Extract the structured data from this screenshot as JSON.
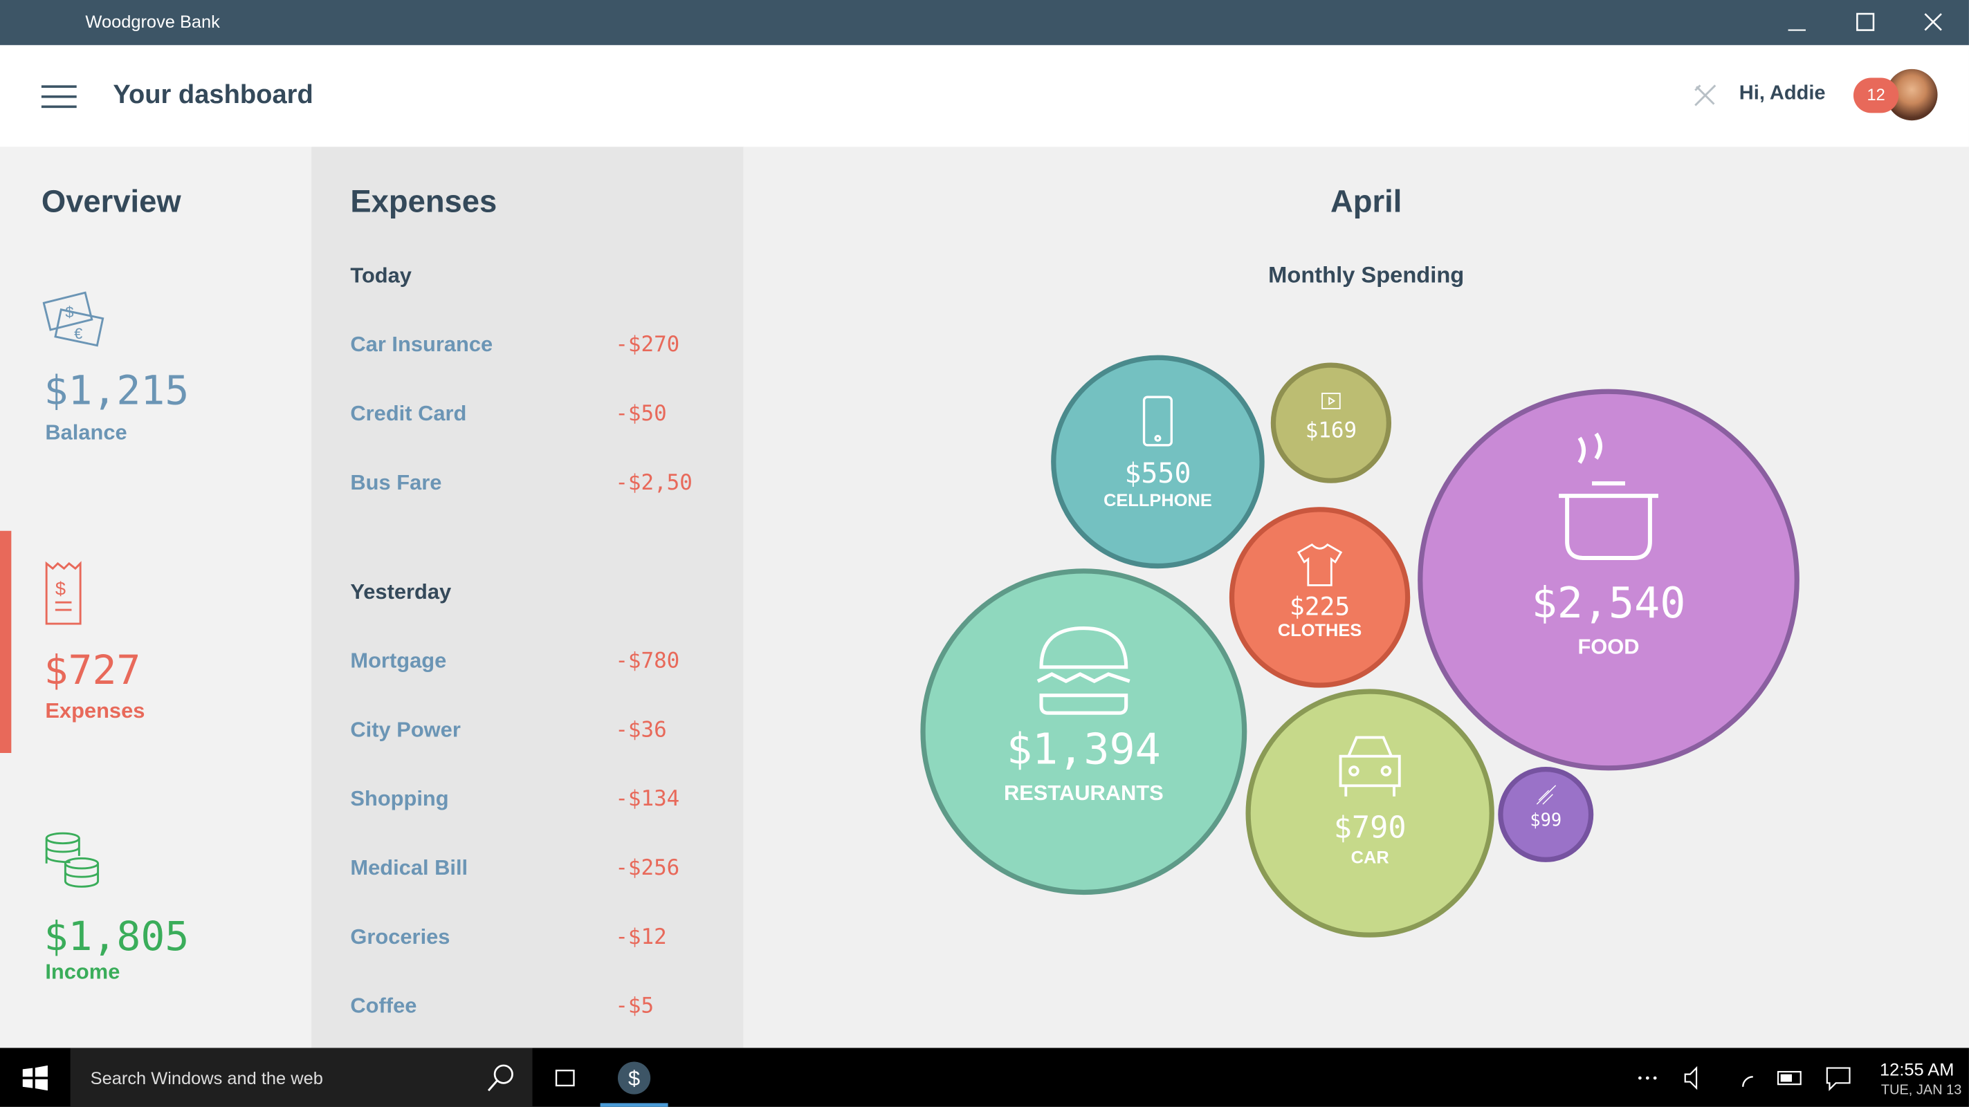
{
  "window": {
    "title": "Woodgrove Bank"
  },
  "header": {
    "title": "Your dashboard",
    "greeting": "Hi, Addie",
    "badge": "12"
  },
  "overview": {
    "title": "Overview",
    "items": [
      {
        "amount": "$1,215",
        "label": "Balance"
      },
      {
        "amount": "$727",
        "label": "Expenses"
      },
      {
        "amount": "$1,805",
        "label": "Income"
      }
    ]
  },
  "expenses": {
    "title": "Expenses",
    "groups": [
      {
        "heading": "Today",
        "items": [
          {
            "name": "Car Insurance",
            "amount": "-$270"
          },
          {
            "name": "Credit Card",
            "amount": "-$50"
          },
          {
            "name": "Bus Fare",
            "amount": "-$2,50"
          }
        ]
      },
      {
        "heading": "Yesterday",
        "items": [
          {
            "name": "Mortgage",
            "amount": "-$780"
          },
          {
            "name": "City Power",
            "amount": "-$36"
          },
          {
            "name": "Shopping",
            "amount": "-$134"
          },
          {
            "name": "Medical Bill",
            "amount": "-$256"
          },
          {
            "name": "Groceries",
            "amount": "-$12"
          },
          {
            "name": "Coffee",
            "amount": "-$5"
          }
        ]
      }
    ]
  },
  "spending": {
    "month": "April",
    "title": "Monthly Spending",
    "bubbles": [
      {
        "amount": "$550",
        "label": "CELLPHONE"
      },
      {
        "amount": "$169"
      },
      {
        "amount": "$2,540",
        "label": "FOOD"
      },
      {
        "amount": "$225",
        "label": "CLOTHES"
      },
      {
        "amount": "$1,394",
        "label": "RESTAURANTS"
      },
      {
        "amount": "$790",
        "label": "CAR"
      },
      {
        "amount": "$99"
      }
    ]
  },
  "taskbar": {
    "search": "Search Windows and the web",
    "time": "12:55 AM",
    "date": "TUE, JAN 13"
  }
}
